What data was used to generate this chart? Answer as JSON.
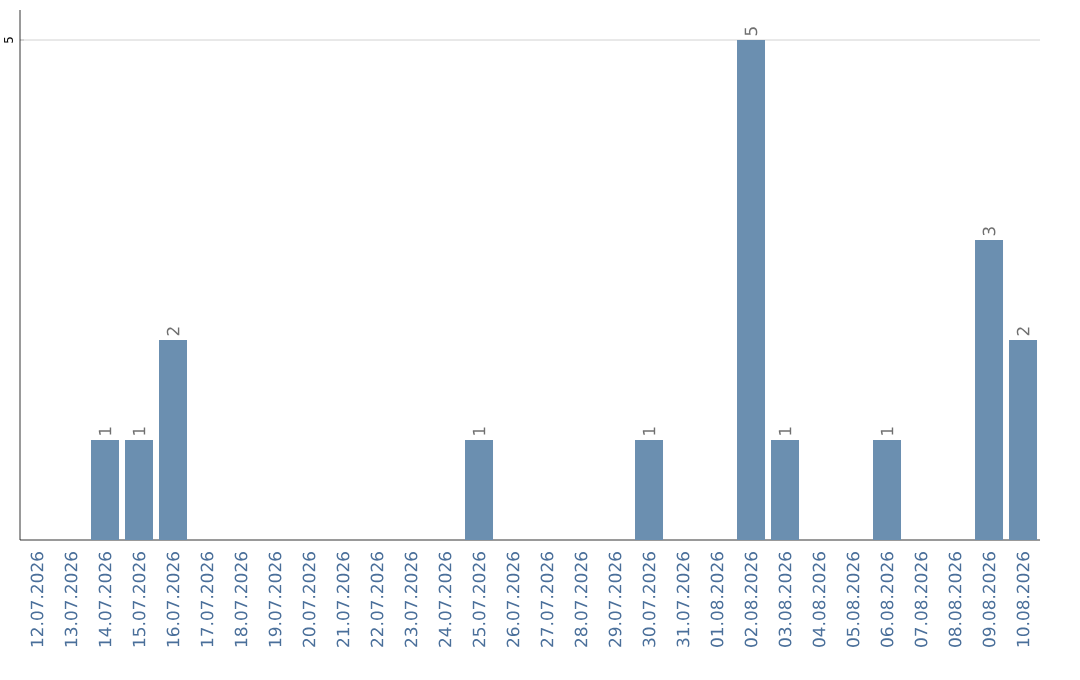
{
  "chart_data": {
    "type": "bar",
    "categories": [
      "12.07.2026",
      "13.07.2026",
      "14.07.2026",
      "15.07.2026",
      "16.07.2026",
      "17.07.2026",
      "18.07.2026",
      "19.07.2026",
      "20.07.2026",
      "21.07.2026",
      "22.07.2026",
      "23.07.2026",
      "24.07.2026",
      "25.07.2026",
      "26.07.2026",
      "27.07.2026",
      "28.07.2026",
      "29.07.2026",
      "30.07.2026",
      "31.07.2026",
      "01.08.2026",
      "02.08.2026",
      "03.08.2026",
      "04.08.2026",
      "05.08.2026",
      "06.08.2026",
      "07.08.2026",
      "08.08.2026",
      "09.08.2026",
      "10.08.2026"
    ],
    "values": [
      0,
      0,
      1,
      1,
      2,
      0,
      0,
      0,
      0,
      0,
      0,
      0,
      0,
      1,
      0,
      0,
      0,
      0,
      1,
      0,
      0,
      5,
      1,
      0,
      0,
      1,
      0,
      0,
      3,
      2
    ],
    "value_labels": [
      null,
      null,
      "1",
      "1",
      "2",
      null,
      null,
      null,
      null,
      null,
      null,
      null,
      null,
      "1",
      null,
      null,
      null,
      null,
      "1",
      null,
      null,
      "5",
      "1",
      null,
      null,
      "1",
      null,
      null,
      "3",
      "2"
    ],
    "color": "#6b8fb0",
    "ylim": [
      0,
      5.3
    ],
    "yticks": [
      5
    ],
    "grid": "y"
  }
}
